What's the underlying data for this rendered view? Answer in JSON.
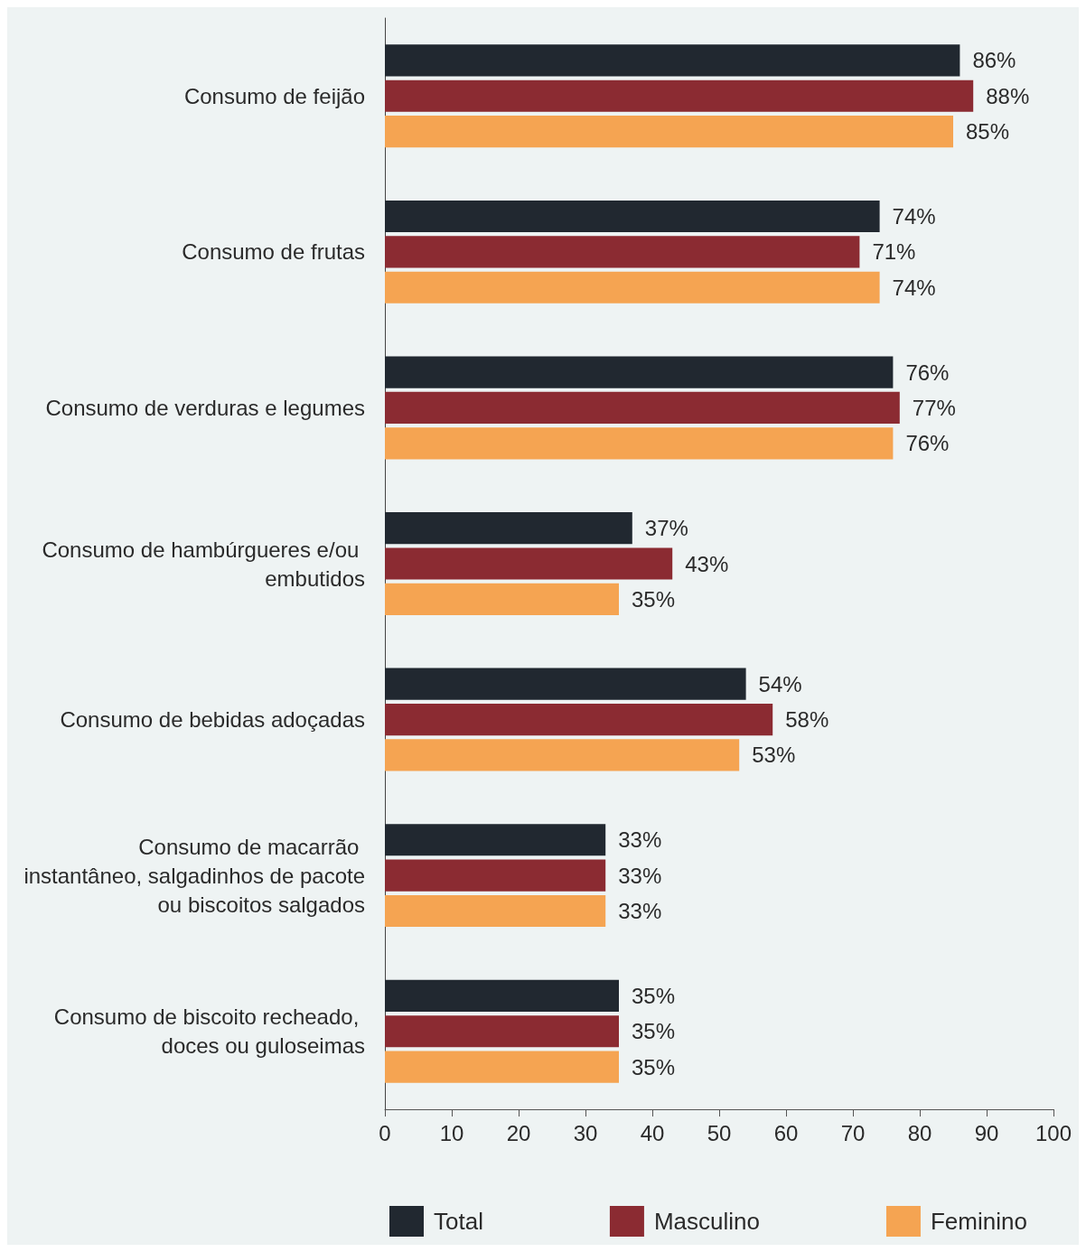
{
  "chart_data": {
    "type": "bar",
    "orientation": "horizontal",
    "categories": [
      "Consumo de feijão",
      "Consumo de frutas",
      "Consumo de verduras e legumes",
      "Consumo de hambúrgueres e/ou embutidos",
      "Consumo de bebidas adoçadas",
      "Consumo de macarrão instantâneo, salgadinhos de pacote ou biscoitos salgados",
      "Consumo de biscoito recheado, doces ou guloseimas"
    ],
    "series": [
      {
        "name": "Total",
        "color": "#212830",
        "values": [
          86,
          74,
          76,
          37,
          54,
          33,
          35
        ],
        "value_labels": [
          "86%",
          "74%",
          "76%",
          "37%",
          "54%",
          "33%",
          "35%"
        ]
      },
      {
        "name": "Masculino",
        "color": "#8b2b32",
        "values": [
          88,
          71,
          77,
          43,
          58,
          33,
          35
        ],
        "value_labels": [
          "88%",
          "71%",
          "77%",
          "43%",
          "58%",
          "33%",
          "35%"
        ]
      },
      {
        "name": "Feminino",
        "color": "#f5a452",
        "values": [
          85,
          74,
          76,
          35,
          53,
          33,
          35
        ],
        "value_labels": [
          "85%",
          "74%",
          "76%",
          "35%",
          "53%",
          "33%",
          "35%"
        ]
      }
    ],
    "xlim": [
      0,
      100
    ],
    "xticks": [
      0,
      10,
      20,
      30,
      40,
      50,
      60,
      70,
      80,
      90,
      100
    ],
    "grid": false,
    "legend": "bottom"
  }
}
